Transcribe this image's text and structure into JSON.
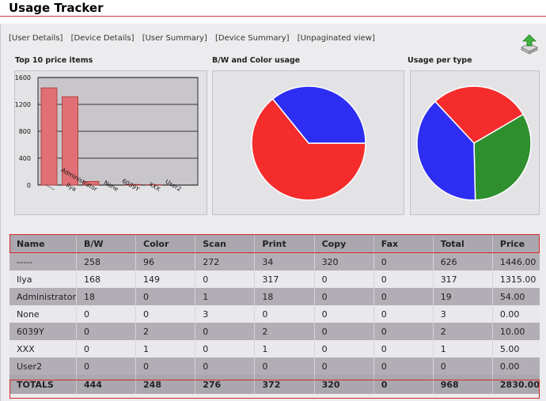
{
  "title": "Usage Tracker",
  "nav": [
    {
      "label": "[User Details]"
    },
    {
      "label": "[Device Details]"
    },
    {
      "label": "[User Summary]"
    },
    {
      "label": "[Device Summary]"
    },
    {
      "label": "[Unpaginated view]"
    }
  ],
  "icons": {
    "export": "download-arrow-icon"
  },
  "colors": {
    "accent": "#d42a2a",
    "bar": "#e07075",
    "bw_slice": "#f52c2c",
    "color_slice": "#2d2ef2",
    "green_slice": "#2e8f2e"
  },
  "chart_titles": {
    "top10": "Top 10 price items",
    "bw_color": "B/W and Color usage",
    "per_type": "Usage per type"
  },
  "chart_data": [
    {
      "type": "bar",
      "title": "Top 10 price items",
      "categories": [
        "-----",
        "Ilya",
        "Administrator",
        "None",
        "6039Y",
        "XXX",
        "User2"
      ],
      "values": [
        1446,
        1315,
        54,
        0,
        10,
        5,
        0
      ],
      "ylim": [
        0,
        1600
      ],
      "yticks": [
        0,
        400,
        800,
        1200,
        1600
      ],
      "xlabel": "",
      "ylabel": ""
    },
    {
      "type": "pie",
      "title": "B/W and Color usage",
      "slices": [
        {
          "value": 444,
          "color": "#f52c2c"
        },
        {
          "value": 248,
          "color": "#2d2ef2"
        }
      ]
    },
    {
      "type": "pie",
      "title": "Usage per type",
      "slices": [
        {
          "value": 276,
          "color": "#f52c2c"
        },
        {
          "value": 320,
          "color": "#2e8f2e"
        },
        {
          "value": 372,
          "color": "#2d2ef2"
        }
      ]
    }
  ],
  "table": {
    "columns": [
      "Name",
      "B/W",
      "Color",
      "Scan",
      "Print",
      "Copy",
      "Fax",
      "Total",
      "Price"
    ],
    "rows": [
      [
        "-----",
        "258",
        "96",
        "272",
        "34",
        "320",
        "0",
        "626",
        "1446.00"
      ],
      [
        "Ilya",
        "168",
        "149",
        "0",
        "317",
        "0",
        "0",
        "317",
        "1315.00"
      ],
      [
        "Administrator",
        "18",
        "0",
        "1",
        "18",
        "0",
        "0",
        "19",
        "54.00"
      ],
      [
        "None",
        "0",
        "0",
        "3",
        "0",
        "0",
        "0",
        "3",
        "0.00"
      ],
      [
        "6039Y",
        "0",
        "2",
        "0",
        "2",
        "0",
        "0",
        "2",
        "10.00"
      ],
      [
        "XXX",
        "0",
        "1",
        "0",
        "1",
        "0",
        "0",
        "1",
        "5.00"
      ],
      [
        "User2",
        "0",
        "0",
        "0",
        "0",
        "0",
        "0",
        "0",
        "0.00"
      ]
    ],
    "totals": [
      "TOTALS",
      "444",
      "248",
      "276",
      "372",
      "320",
      "0",
      "968",
      "2830.00"
    ]
  }
}
